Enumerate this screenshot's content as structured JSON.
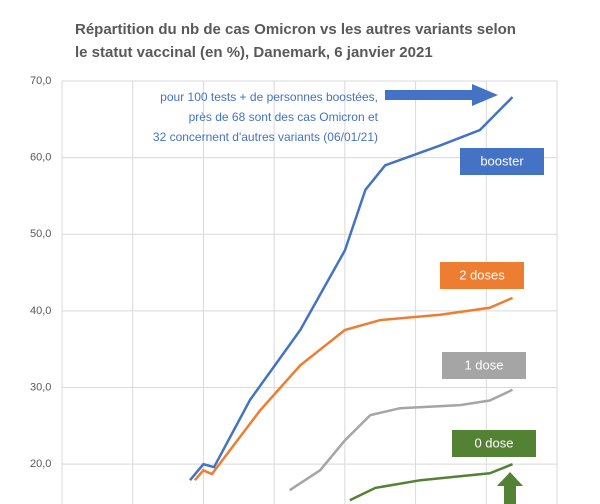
{
  "chart_data": {
    "type": "line",
    "title": [
      "Répartition du nb de cas Omicron vs les autres variants selon",
      "le statut vaccinal (en %), Danemark, 6 janvier 2021"
    ],
    "annotation": [
      "pour 100 tests + de personnes boostées,",
      "près de 68 sont des cas Omicron et",
      "32 concernent d'autres variants (06/01/21)"
    ],
    "xlim": [
      0,
      7
    ],
    "xticks": [
      1,
      2,
      3,
      4,
      5,
      6
    ],
    "ylim": [
      14.8,
      70
    ],
    "yticks": [
      {
        "value": 20,
        "label": "20,0"
      },
      {
        "value": 30,
        "label": "30,0"
      },
      {
        "value": 40,
        "label": "40,0"
      },
      {
        "value": 50,
        "label": "50,0"
      },
      {
        "value": 60,
        "label": "60,0"
      },
      {
        "value": 70,
        "label": "70,0"
      }
    ],
    "grid": true,
    "series": [
      {
        "name": "booster",
        "color": "#4472c4",
        "x": [
          1.81,
          2.0,
          2.15,
          2.66,
          3.37,
          4.0,
          4.29,
          4.57,
          5.35,
          5.91,
          6.37
        ],
        "values": [
          17.9,
          20.0,
          19.6,
          28.4,
          37.5,
          47.9,
          55.8,
          59.0,
          61.6,
          63.6,
          67.9
        ]
      },
      {
        "name": "2 doses",
        "color": "#ed7d31",
        "x": [
          1.88,
          2.0,
          2.12,
          2.8,
          3.37,
          4.0,
          4.5,
          5.35,
          6.05,
          6.37
        ],
        "values": [
          17.9,
          19.2,
          18.7,
          27.0,
          32.9,
          37.5,
          38.8,
          39.5,
          40.4,
          41.7
        ]
      },
      {
        "name": "1 dose",
        "color": "#a5a5a5",
        "x": [
          3.22,
          3.65,
          4.0,
          4.36,
          4.78,
          5.63,
          6.05,
          6.37
        ],
        "values": [
          16.6,
          19.2,
          23.1,
          26.4,
          27.3,
          27.7,
          28.3,
          29.7
        ]
      },
      {
        "name": "0 dose",
        "color": "#548235",
        "x": [
          4.07,
          4.43,
          5.07,
          6.05,
          6.37
        ],
        "values": [
          15.3,
          16.9,
          17.9,
          18.8,
          20.0
        ]
      }
    ]
  }
}
